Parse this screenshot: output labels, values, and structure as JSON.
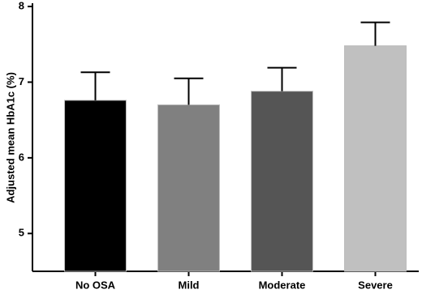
{
  "chart_data": {
    "type": "bar",
    "y_label": "Adjusted mean HbA1c (%)",
    "categories": [
      "No OSA",
      "Mild",
      "Moderate",
      "Severe"
    ],
    "values": [
      6.76,
      6.7,
      6.88,
      7.48
    ],
    "errors": [
      0.37,
      0.35,
      0.31,
      0.31
    ],
    "colors": [
      "#000000",
      "#808080",
      "#555555",
      "#c0c0c0"
    ],
    "ylim": [
      4.5,
      8
    ],
    "yticks": [
      5,
      6,
      7,
      8
    ],
    "grid": false
  }
}
